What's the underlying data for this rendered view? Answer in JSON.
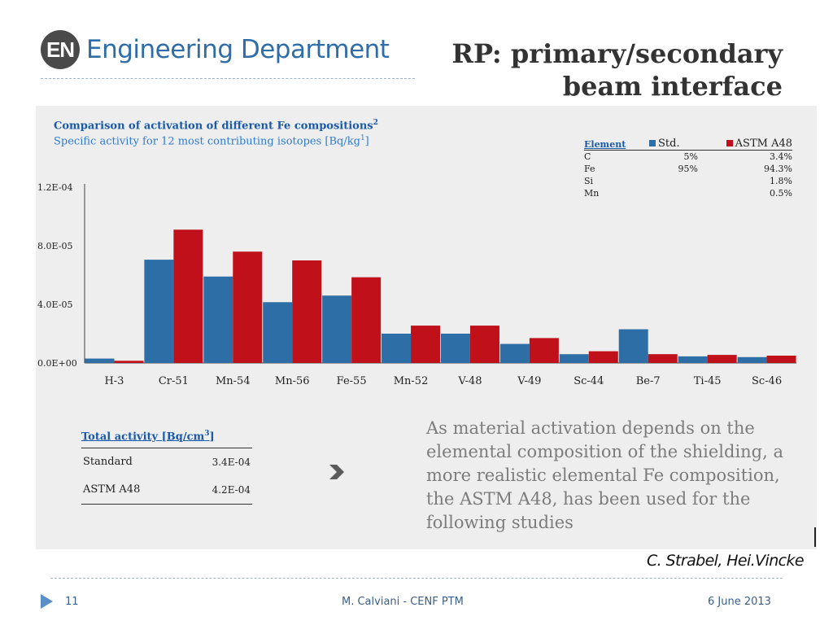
{
  "header": {
    "logo_badge": "EN",
    "logo_text": "Engineering Department",
    "title_line1": "RP: primary/secondary",
    "title_line2": "beam interface"
  },
  "chart_data": {
    "type": "bar",
    "title": "Comparison of activation of different Fe compositions",
    "title_sup": "2",
    "subtitle": "Specific activity for 12 most contributing isotopes [Bq/kg",
    "subtitle_sup": "1",
    "subtitle_end": "]",
    "categories": [
      "H-3",
      "Cr-51",
      "Mn-54",
      "Mn-56",
      "Fe-55",
      "Mn-52",
      "V-48",
      "V-49",
      "Sc-44",
      "Be-7",
      "Ti-45",
      "Sc-46"
    ],
    "series": [
      {
        "name": "Std.",
        "color": "#2e6ea6",
        "values": [
          3e-06,
          7.05e-05,
          5.9e-05,
          4.15e-05,
          4.6e-05,
          2e-05,
          2e-05,
          1.3e-05,
          6e-06,
          2.3e-05,
          4.5e-06,
          4e-06
        ]
      },
      {
        "name": "ASTM A48",
        "color": "#c0111b",
        "values": [
          1.5e-06,
          9.1e-05,
          7.6e-05,
          7e-05,
          5.85e-05,
          2.55e-05,
          2.55e-05,
          1.7e-05,
          8e-06,
          6e-06,
          5.5e-06,
          5e-06
        ]
      }
    ],
    "yticks": [
      0,
      4e-05,
      8e-05,
      0.00012
    ],
    "ytick_labels": [
      "0.0E+00",
      "4.0E-05",
      "8.0E-05",
      "1.2E-04"
    ],
    "ylim": [
      0,
      0.00012
    ],
    "legend_position": "top-right"
  },
  "composition_table": {
    "header_element": "Element",
    "header_std": "Std.",
    "header_astm": "ASTM A48",
    "rows": [
      {
        "element": "C",
        "std": "5%",
        "astm": "3.4%"
      },
      {
        "element": "Fe",
        "std": "95%",
        "astm": "94.3%"
      },
      {
        "element": "Si",
        "std": "",
        "astm": "1.8%"
      },
      {
        "element": "Mn",
        "std": "",
        "astm": "0.5%"
      }
    ]
  },
  "total_activity": {
    "title": "Total activity [Bq/cm",
    "title_sup": "3",
    "title_end": "]",
    "rows": [
      {
        "label": "Standard",
        "value": "3.4E-04"
      },
      {
        "label": "ASTM A48",
        "value": "4.2E-04"
      }
    ]
  },
  "description": "As material activation depends on the elemental composition of the shielding, a more realistic elemental Fe composition, the ASTM A48, has been used for the following studies",
  "credit": "C. Strabel, Hei.Vincke",
  "footer": {
    "page_number": "11",
    "center": "M. Calviani - CENF PTM",
    "date": "6 June 2013"
  },
  "colors": {
    "accent_blue": "#2f6da8",
    "std_series": "#2e6ea6",
    "astm_series": "#c0111b"
  }
}
